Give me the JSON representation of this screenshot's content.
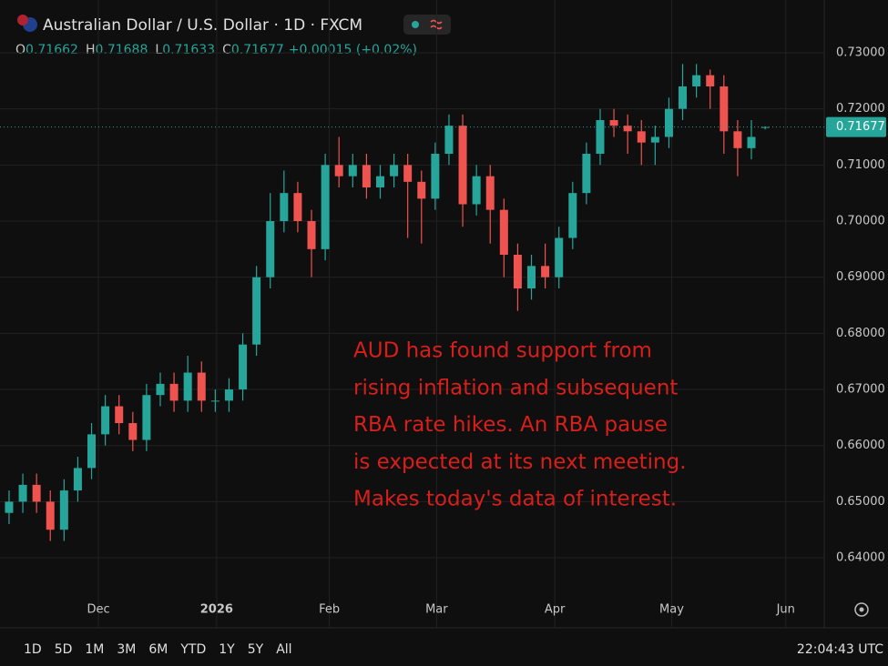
{
  "chart_data": {
    "type": "candlestick",
    "title": "Australian Dollar / U.S. Dollar · 1D · FXCM",
    "header_labels": [
      "O",
      "H",
      "L",
      "C"
    ],
    "change": "+0.00015 (+0.02%)",
    "open": [
      0.648,
      0.65,
      0.653,
      0.65,
      0.645,
      0.652,
      0.656,
      0.662,
      0.667,
      0.664,
      0.661,
      0.669,
      0.671,
      0.668,
      0.673,
      0.668,
      0.668,
      0.67,
      0.678,
      0.69,
      0.7,
      0.705,
      0.7,
      0.695,
      0.71,
      0.708,
      0.71,
      0.706,
      0.708,
      0.71,
      0.707,
      0.704,
      0.712,
      0.717,
      0.703,
      0.708,
      0.702,
      0.694,
      0.688,
      0.692,
      0.69,
      0.697,
      0.705,
      0.712,
      0.718,
      0.717,
      0.716,
      0.714,
      0.715,
      0.72,
      0.724,
      0.726,
      0.724,
      0.716,
      0.713,
      0.71662
    ],
    "high": [
      0.652,
      0.655,
      0.655,
      0.652,
      0.654,
      0.658,
      0.664,
      0.669,
      0.669,
      0.666,
      0.671,
      0.673,
      0.673,
      0.676,
      0.675,
      0.67,
      0.672,
      0.68,
      0.692,
      0.705,
      0.709,
      0.707,
      0.702,
      0.712,
      0.715,
      0.712,
      0.712,
      0.71,
      0.712,
      0.712,
      0.709,
      0.714,
      0.719,
      0.719,
      0.71,
      0.71,
      0.704,
      0.696,
      0.694,
      0.696,
      0.699,
      0.707,
      0.714,
      0.72,
      0.72,
      0.719,
      0.718,
      0.717,
      0.722,
      0.728,
      0.728,
      0.727,
      0.726,
      0.718,
      0.718,
      0.71688
    ],
    "low": [
      0.646,
      0.648,
      0.648,
      0.643,
      0.643,
      0.65,
      0.654,
      0.66,
      0.662,
      0.659,
      0.659,
      0.667,
      0.666,
      0.666,
      0.666,
      0.666,
      0.666,
      0.668,
      0.676,
      0.688,
      0.698,
      0.698,
      0.69,
      0.693,
      0.706,
      0.706,
      0.704,
      0.704,
      0.706,
      0.697,
      0.696,
      0.702,
      0.71,
      0.699,
      0.701,
      0.696,
      0.69,
      0.684,
      0.686,
      0.688,
      0.688,
      0.695,
      0.703,
      0.71,
      0.715,
      0.712,
      0.71,
      0.71,
      0.713,
      0.718,
      0.722,
      0.72,
      0.712,
      0.708,
      0.711,
      0.71633
    ],
    "close": [
      0.65,
      0.653,
      0.65,
      0.645,
      0.652,
      0.656,
      0.662,
      0.667,
      0.664,
      0.661,
      0.669,
      0.671,
      0.668,
      0.673,
      0.668,
      0.668,
      0.67,
      0.678,
      0.69,
      0.7,
      0.705,
      0.7,
      0.695,
      0.71,
      0.708,
      0.71,
      0.706,
      0.708,
      0.71,
      0.707,
      0.704,
      0.712,
      0.717,
      0.703,
      0.708,
      0.702,
      0.694,
      0.688,
      0.692,
      0.69,
      0.697,
      0.705,
      0.712,
      0.718,
      0.717,
      0.716,
      0.714,
      0.715,
      0.72,
      0.724,
      0.726,
      0.724,
      0.716,
      0.713,
      0.715,
      0.71677
    ],
    "up_color": "#26a69a",
    "down_color": "#ef5350",
    "xlim": [
      -0.66,
      59.3
    ],
    "xticks": [
      {
        "value": 6.5,
        "label": "Dec"
      },
      {
        "value": 15.1,
        "label": "2026"
      },
      {
        "value": 23.3,
        "label": "Feb"
      },
      {
        "value": 31.1,
        "label": "Mar"
      },
      {
        "value": 39.7,
        "label": "Apr"
      },
      {
        "value": 48.2,
        "label": "May"
      },
      {
        "value": 56.5,
        "label": "Jun"
      }
    ],
    "ylim": [
      0.6332,
      0.7394
    ],
    "yticks": [
      {
        "value": 0.64,
        "label": "0.64000"
      },
      {
        "value": 0.65,
        "label": "0.65000"
      },
      {
        "value": 0.66,
        "label": "0.66000"
      },
      {
        "value": 0.67,
        "label": "0.67000"
      },
      {
        "value": 0.68,
        "label": "0.68000"
      },
      {
        "value": 0.69,
        "label": "0.69000"
      },
      {
        "value": 0.7,
        "label": "0.70000"
      },
      {
        "value": 0.71,
        "label": "0.71000"
      },
      {
        "value": 0.72,
        "label": "0.72000"
      },
      {
        "value": 0.73,
        "label": "0.73000"
      }
    ],
    "grid": true,
    "annotation": [
      "AUD has found support from",
      "rising inflation and subsequent",
      "RBA rate hikes. An RBA pause",
      "is expected at its next meeting.",
      "Makes today's data of interest."
    ],
    "ranges": [
      "1D",
      "5D",
      "1M",
      "3M",
      "6M",
      "YTD",
      "1Y",
      "5Y",
      "All"
    ],
    "time": "22:04:43 UTC"
  }
}
